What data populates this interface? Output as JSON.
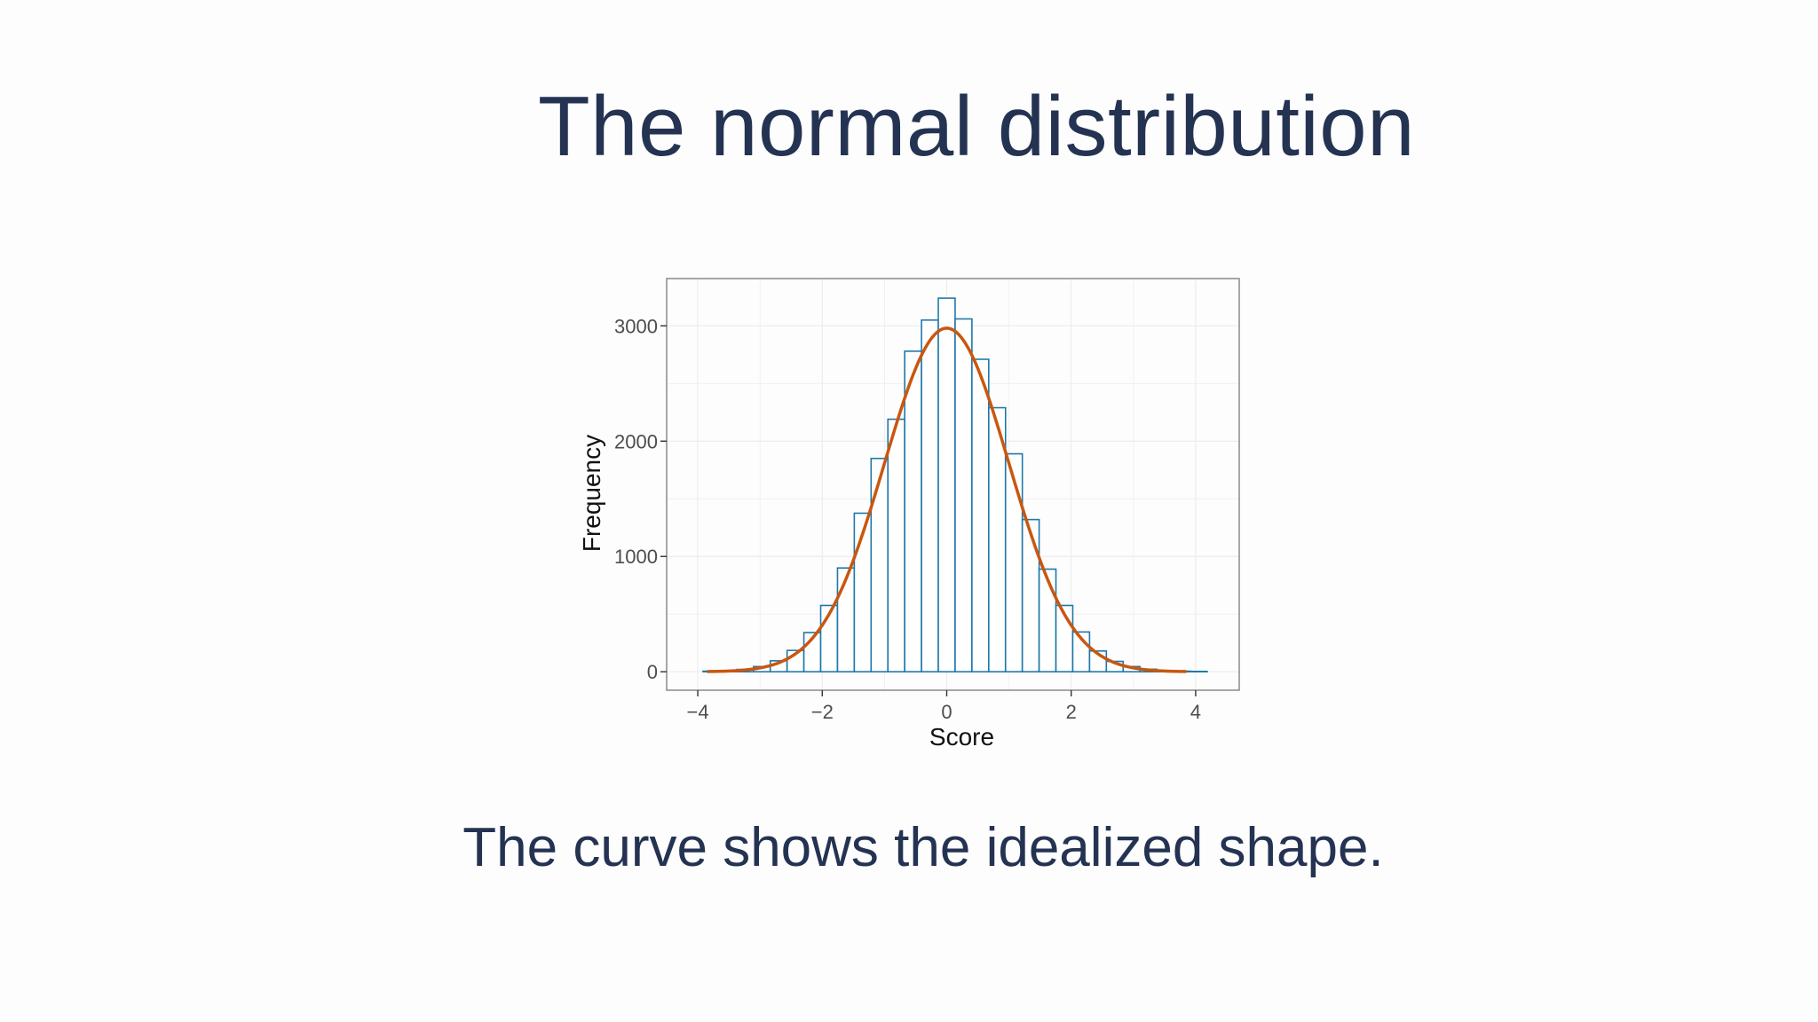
{
  "slide": {
    "title": "The normal distribution",
    "caption": "The curve shows the idealized shape."
  },
  "colors": {
    "text": "#243352",
    "bar_stroke": "#1f78a8",
    "curve": "#c8570f",
    "panel_border": "#8a8a8a",
    "grid": "#ececec",
    "tick_text": "#4d4d4d"
  },
  "chart_data": {
    "type": "bar",
    "subtype": "histogram",
    "title": "",
    "xlabel": "Score",
    "ylabel": "Frequency",
    "xlim": [
      -4.5,
      4.7
    ],
    "ylim": [
      -160,
      3410
    ],
    "x_ticks": [
      -4,
      -2,
      0,
      2,
      4
    ],
    "x_tick_labels": [
      "−4",
      "−2",
      "0",
      "2",
      "4"
    ],
    "y_ticks": [
      0,
      1000,
      2000,
      3000
    ],
    "y_tick_labels": [
      "0",
      "1000",
      "2000",
      "3000"
    ],
    "grid": true,
    "legend": "none",
    "bin_width": 0.27,
    "bin_centers": [
      -3.78,
      -3.51,
      -3.24,
      -2.97,
      -2.7,
      -2.43,
      -2.16,
      -1.89,
      -1.62,
      -1.35,
      -1.08,
      -0.81,
      -0.54,
      -0.27,
      0.0,
      0.27,
      0.54,
      0.81,
      1.08,
      1.35,
      1.62,
      1.89,
      2.16,
      2.43,
      2.7,
      2.97,
      3.24,
      3.51,
      3.78,
      4.05
    ],
    "values": [
      5,
      10,
      20,
      45,
      95,
      185,
      340,
      575,
      900,
      1375,
      1850,
      2190,
      2780,
      3050,
      3240,
      3060,
      2710,
      2290,
      1890,
      1320,
      890,
      575,
      345,
      180,
      90,
      45,
      22,
      10,
      5,
      3
    ],
    "curve": {
      "name": "",
      "peak": 2980,
      "mean": 0,
      "sd": 1,
      "x_range": [
        -3.85,
        3.85
      ]
    }
  }
}
